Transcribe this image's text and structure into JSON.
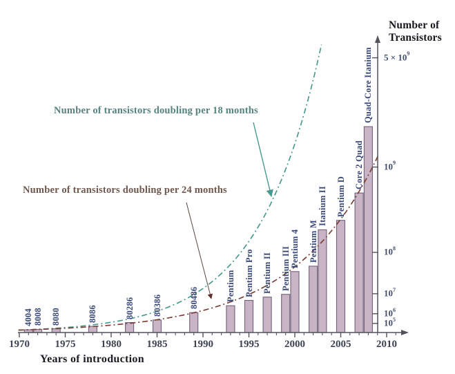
{
  "axes": {
    "y_title_line1": "Number of",
    "y_title_line2": "Transistors",
    "x_title": "Years of introduction"
  },
  "annotations": {
    "doubling_18": {
      "text": "Number of transistors doubling per 18 months",
      "color": "#57827d"
    },
    "doubling_24": {
      "text": "Number of transistors doubling per 24 months",
      "color": "#6e574d"
    }
  },
  "chart_data": {
    "type": "bar",
    "title": "",
    "xlabel": "Years of introduction",
    "ylabel": "Number of Transistors",
    "x_axis": {
      "range_years": [
        1970,
        2011
      ],
      "major_ticks": [
        1970,
        1975,
        1980,
        1985,
        1990,
        1995,
        2000,
        2005,
        2010
      ],
      "minor_tick_every_years": 1
    },
    "y_axis": {
      "scale": "logarithmic values, decade spacing doubling upward",
      "ticks": [
        {
          "prefix": "5 × ",
          "exp": "9",
          "value": 5000000000
        },
        {
          "prefix": "",
          "exp": "9",
          "value": 1000000000
        },
        {
          "prefix": "",
          "exp": "8",
          "value": 100000000
        },
        {
          "prefix": "",
          "exp": "7",
          "value": 10000000
        },
        {
          "prefix": "",
          "exp": "6",
          "value": 1000000
        },
        {
          "prefix": "",
          "exp": "5",
          "value": 100000
        }
      ]
    },
    "bars": [
      {
        "label": "4004",
        "year": 1971,
        "transistors": 2300
      },
      {
        "label": "8008",
        "year": 1972,
        "transistors": 3500
      },
      {
        "label": "8080",
        "year": 1974,
        "transistors": 6000
      },
      {
        "label": "8086",
        "year": 1978,
        "transistors": 29000
      },
      {
        "label": "80286",
        "year": 1982,
        "transistors": 134000
      },
      {
        "label": "80386",
        "year": 1985,
        "transistors": 275000
      },
      {
        "label": "80486",
        "year": 1989,
        "transistors": 1200000
      },
      {
        "label": "Pentium",
        "year": 1993,
        "transistors": 3100000
      },
      {
        "label": "Pentium Pro",
        "year": 1995,
        "transistors": 5500000
      },
      {
        "label": "Pentium II",
        "year": 1997,
        "transistors": 7500000
      },
      {
        "label": "Pentium III",
        "year": 1999,
        "transistors": 9500000
      },
      {
        "label": "Pentium 4",
        "year": 2000,
        "transistors": 42000000
      },
      {
        "label": "Pentium M",
        "year": 2002,
        "transistors": 55000000
      },
      {
        "label": "Itanium II",
        "year": 2003,
        "transistors": 220000000
      },
      {
        "label": "Pentium D",
        "year": 2005,
        "transistors": 291000000
      },
      {
        "label": "Core 2 Quad",
        "year": 2007,
        "transistors": 582000000
      },
      {
        "label": "Quad-Core Itanium",
        "year": 2008,
        "transistors": 2000000000
      }
    ],
    "curves": [
      {
        "name": "doubling_18",
        "label": "Number of transistors doubling per 18 months",
        "doubling_period_months": 18,
        "reference_year": 1971,
        "reference_transistors": 2300,
        "color": "#4b9a90",
        "line_style": "dash-dot",
        "end_year": 2003.2
      },
      {
        "name": "doubling_24",
        "label": "Number of transistors doubling per 24 months",
        "doubling_period_months": 24,
        "reference_year": 1971,
        "reference_transistors": 2300,
        "color": "#7b4038",
        "line_style": "dash-dot",
        "end_year": 2009.2
      }
    ],
    "styles": {
      "bar_fill": "#c9b4c6",
      "bar_border": "#70607a",
      "bar_label_color": "#3a4979",
      "axis_color": "#53525b",
      "x_tick_label_color": "#3d4254",
      "y_tick_label_color": "#44506e",
      "arrow_24_line_color": "#56463f",
      "arrow_24_head_color": "#5c2f28"
    }
  }
}
